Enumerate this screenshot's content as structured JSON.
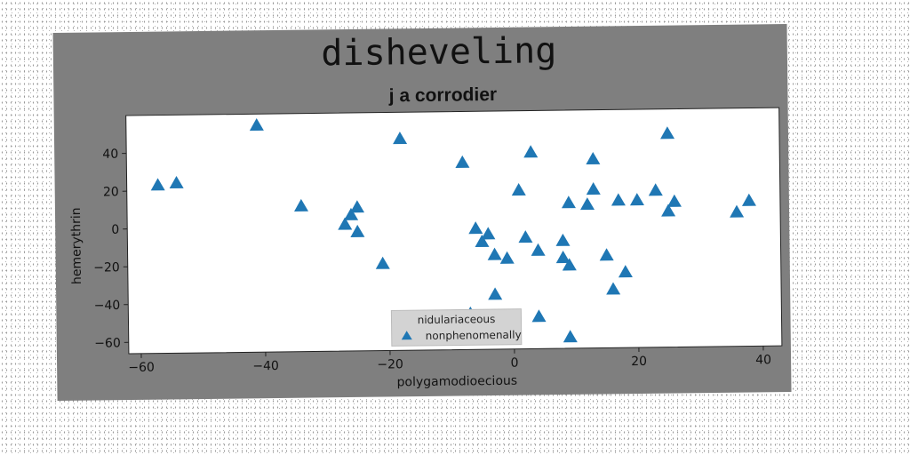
{
  "chart_data": {
    "type": "scatter",
    "title": "disheveling",
    "subtitle": "j a corrodier",
    "xlabel": "polygamodioecious",
    "ylabel": "hemerythrin",
    "xlim": [
      -62,
      43
    ],
    "ylim": [
      -66,
      60
    ],
    "x_ticks": [
      -60,
      -40,
      -20,
      0,
      20,
      40
    ],
    "y_ticks": [
      -60,
      -40,
      -20,
      0,
      20,
      40
    ],
    "grid": false,
    "legend": {
      "title": "nidulariaceous",
      "placement": "lower-center",
      "entries": [
        "nonphenomenally"
      ]
    },
    "series": [
      {
        "name": "nonphenomenally",
        "marker": "triangle",
        "color": "#1f77b4",
        "points": [
          [
            -57,
            23
          ],
          [
            -54,
            24
          ],
          [
            -41,
            54
          ],
          [
            -34,
            11
          ],
          [
            -27,
            1
          ],
          [
            -26,
            6
          ],
          [
            -25,
            10
          ],
          [
            -25,
            -3
          ],
          [
            -21,
            -20
          ],
          [
            -18,
            46
          ],
          [
            -8,
            33
          ],
          [
            -6,
            -2
          ],
          [
            -5,
            -9
          ],
          [
            -4,
            -5
          ],
          [
            -3,
            -16
          ],
          [
            -3,
            -37
          ],
          [
            -7,
            -47
          ],
          [
            -1,
            -18
          ],
          [
            1,
            18
          ],
          [
            2,
            -7
          ],
          [
            3,
            38
          ],
          [
            4,
            -14
          ],
          [
            4,
            -49
          ],
          [
            8,
            -18
          ],
          [
            8,
            -9
          ],
          [
            9,
            -22
          ],
          [
            9,
            11
          ],
          [
            9,
            -60
          ],
          [
            12,
            10
          ],
          [
            13,
            34
          ],
          [
            13,
            18
          ],
          [
            15,
            -17
          ],
          [
            16,
            -35
          ],
          [
            17,
            12
          ],
          [
            18,
            -26
          ],
          [
            20,
            12
          ],
          [
            23,
            17
          ],
          [
            25,
            6
          ],
          [
            26,
            11
          ],
          [
            25,
            47
          ],
          [
            36,
            5
          ],
          [
            38,
            11
          ]
        ]
      }
    ]
  },
  "colors": {
    "figure_background": "#7f7f7f",
    "axes_background": "#ffffff",
    "marker": "#1f77b4",
    "legend_background": "#d3d3d3"
  }
}
